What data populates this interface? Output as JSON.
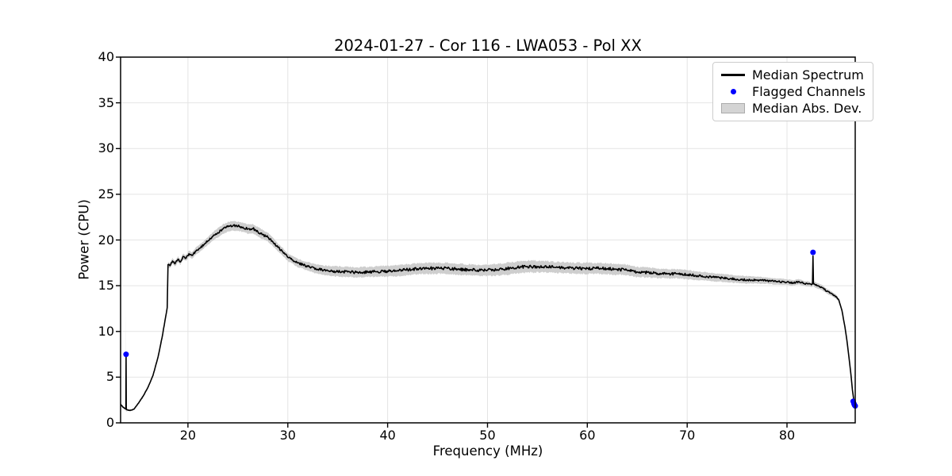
{
  "colors": {
    "line": "#000000",
    "flagged": "#0000ff",
    "band": "#cecece",
    "grid": "#e4e4e4",
    "frame": "#000000",
    "legend_border": "#cccccc",
    "background": "#ffffff"
  },
  "chart_data": {
    "type": "line",
    "title": "2024-01-27 - Cor 116 - LWA053 - Pol XX",
    "xlabel": "Frequency (MHz)",
    "ylabel": "Power (CPU)",
    "xlim": [
      13.25,
      86.83
    ],
    "ylim": [
      0,
      40
    ],
    "xticks": [
      20,
      30,
      40,
      50,
      60,
      70,
      80
    ],
    "yticks": [
      0,
      5,
      10,
      15,
      20,
      25,
      30,
      35,
      40
    ],
    "grid": true,
    "legend": {
      "position": "upper right",
      "entries": [
        {
          "label": "Median Spectrum",
          "swatch": "line"
        },
        {
          "label": "Flagged Channels",
          "swatch": "dot"
        },
        {
          "label": "Median Abs. Dev.",
          "swatch": "patch"
        }
      ]
    },
    "series": [
      {
        "name": "Median Spectrum",
        "type": "line",
        "color": "#000000",
        "anchors": [
          [
            13.25,
            2.0,
            0.15
          ],
          [
            13.5,
            1.7,
            0.12
          ],
          [
            13.72,
            1.55,
            0.12
          ],
          [
            13.78,
            1.5,
            0.3
          ],
          [
            13.8,
            7.6,
            5.3
          ],
          [
            13.82,
            1.5,
            0.3
          ],
          [
            13.95,
            1.42,
            0.1
          ],
          [
            14.2,
            1.35,
            0.08
          ],
          [
            14.6,
            1.5,
            0.08
          ],
          [
            15.0,
            2.1,
            0.08
          ],
          [
            15.5,
            2.9,
            0.1
          ],
          [
            16.0,
            3.9,
            0.1
          ],
          [
            16.5,
            5.2,
            0.12
          ],
          [
            17.0,
            7.2,
            0.12
          ],
          [
            17.4,
            9.3,
            0.15
          ],
          [
            17.7,
            11.2,
            0.2
          ],
          [
            17.92,
            12.6,
            0.2
          ],
          [
            18.0,
            17.3,
            0.3
          ],
          [
            18.2,
            17.2,
            0.3
          ],
          [
            18.45,
            17.7,
            0.3
          ],
          [
            18.7,
            17.4,
            0.3
          ],
          [
            19.0,
            17.9,
            0.3
          ],
          [
            19.25,
            17.6,
            0.3
          ],
          [
            19.5,
            18.2,
            0.32
          ],
          [
            19.8,
            18.0,
            0.32
          ],
          [
            20.1,
            18.5,
            0.35
          ],
          [
            20.4,
            18.3,
            0.35
          ],
          [
            20.8,
            18.8,
            0.38
          ],
          [
            21.2,
            19.1,
            0.4
          ],
          [
            21.6,
            19.5,
            0.4
          ],
          [
            22.0,
            19.9,
            0.42
          ],
          [
            22.5,
            20.4,
            0.45
          ],
          [
            23.0,
            20.8,
            0.48
          ],
          [
            23.5,
            21.2,
            0.5
          ],
          [
            24.0,
            21.45,
            0.52
          ],
          [
            24.5,
            21.55,
            0.52
          ],
          [
            25.0,
            21.5,
            0.5
          ],
          [
            25.5,
            21.4,
            0.5
          ],
          [
            26.0,
            21.2,
            0.5
          ],
          [
            26.5,
            21.25,
            0.5
          ],
          [
            27.0,
            20.9,
            0.5
          ],
          [
            27.5,
            20.6,
            0.5
          ],
          [
            28.0,
            20.3,
            0.48
          ],
          [
            28.5,
            19.8,
            0.45
          ],
          [
            29.0,
            19.2,
            0.45
          ],
          [
            29.5,
            18.7,
            0.42
          ],
          [
            30.0,
            18.1,
            0.42
          ],
          [
            30.5,
            17.8,
            0.42
          ],
          [
            31.0,
            17.5,
            0.45
          ],
          [
            31.5,
            17.3,
            0.45
          ],
          [
            32.0,
            17.1,
            0.48
          ],
          [
            33.0,
            16.8,
            0.5
          ],
          [
            34.0,
            16.65,
            0.52
          ],
          [
            35.0,
            16.55,
            0.55
          ],
          [
            36.0,
            16.5,
            0.55
          ],
          [
            37.0,
            16.45,
            0.55
          ],
          [
            38.0,
            16.5,
            0.55
          ],
          [
            39.0,
            16.55,
            0.58
          ],
          [
            40.0,
            16.6,
            0.6
          ],
          [
            41.0,
            16.65,
            0.6
          ],
          [
            42.0,
            16.75,
            0.6
          ],
          [
            43.0,
            16.85,
            0.6
          ],
          [
            44.0,
            16.9,
            0.6
          ],
          [
            45.0,
            16.9,
            0.6
          ],
          [
            46.0,
            16.9,
            0.6
          ],
          [
            47.0,
            16.8,
            0.6
          ],
          [
            48.0,
            16.75,
            0.6
          ],
          [
            49.0,
            16.7,
            0.6
          ],
          [
            50.0,
            16.7,
            0.62
          ],
          [
            51.0,
            16.75,
            0.62
          ],
          [
            52.0,
            16.85,
            0.65
          ],
          [
            53.0,
            17.0,
            0.65
          ],
          [
            54.0,
            17.1,
            0.65
          ],
          [
            55.0,
            17.1,
            0.65
          ],
          [
            56.0,
            17.05,
            0.62
          ],
          [
            57.0,
            17.0,
            0.6
          ],
          [
            58.0,
            16.95,
            0.6
          ],
          [
            59.0,
            16.9,
            0.6
          ],
          [
            60.0,
            16.9,
            0.6
          ],
          [
            61.0,
            16.9,
            0.6
          ],
          [
            62.0,
            16.85,
            0.6
          ],
          [
            63.0,
            16.8,
            0.6
          ],
          [
            64.0,
            16.7,
            0.58
          ],
          [
            65.0,
            16.5,
            0.55
          ],
          [
            66.0,
            16.45,
            0.55
          ],
          [
            67.0,
            16.35,
            0.52
          ],
          [
            68.0,
            16.3,
            0.5
          ],
          [
            69.0,
            16.3,
            0.5
          ],
          [
            70.0,
            16.2,
            0.5
          ],
          [
            71.0,
            16.1,
            0.48
          ],
          [
            72.0,
            16.0,
            0.45
          ],
          [
            73.0,
            15.9,
            0.45
          ],
          [
            74.0,
            15.8,
            0.42
          ],
          [
            75.0,
            15.7,
            0.4
          ],
          [
            76.0,
            15.65,
            0.4
          ],
          [
            77.0,
            15.6,
            0.38
          ],
          [
            78.0,
            15.55,
            0.35
          ],
          [
            79.0,
            15.45,
            0.35
          ],
          [
            80.0,
            15.4,
            0.32
          ],
          [
            80.6,
            15.3,
            0.3
          ],
          [
            81.2,
            15.45,
            0.3
          ],
          [
            81.7,
            15.25,
            0.28
          ],
          [
            82.1,
            15.2,
            0.28
          ],
          [
            82.45,
            15.1,
            0.25
          ],
          [
            82.55,
            15.2,
            0.3
          ],
          [
            82.6,
            18.25,
            0.3
          ],
          [
            82.65,
            15.2,
            0.3
          ],
          [
            83.0,
            15.0,
            0.3
          ],
          [
            83.5,
            14.8,
            0.28
          ],
          [
            84.0,
            14.4,
            0.28
          ],
          [
            84.5,
            14.1,
            0.25
          ],
          [
            85.0,
            13.7,
            0.22
          ],
          [
            85.2,
            13.4,
            0.18
          ],
          [
            85.5,
            12.3,
            0.12
          ],
          [
            85.8,
            10.5,
            0.1
          ],
          [
            86.0,
            9.0,
            0.1
          ],
          [
            86.2,
            7.2,
            0.08
          ],
          [
            86.4,
            5.3,
            0.08
          ],
          [
            86.55,
            3.6,
            0.06
          ],
          [
            86.7,
            2.4,
            0.05
          ],
          [
            86.83,
            1.9,
            0.05
          ]
        ]
      },
      {
        "name": "Flagged Channels",
        "type": "scatter",
        "color": "#0000ff",
        "points": [
          [
            13.8,
            7.5
          ],
          [
            82.6,
            18.65
          ],
          [
            86.62,
            2.35
          ],
          [
            86.7,
            2.1
          ],
          [
            86.76,
            1.95
          ],
          [
            86.83,
            1.85
          ]
        ]
      },
      {
        "name": "Median Abs. Dev.",
        "type": "band",
        "color": "#cecece"
      }
    ]
  }
}
